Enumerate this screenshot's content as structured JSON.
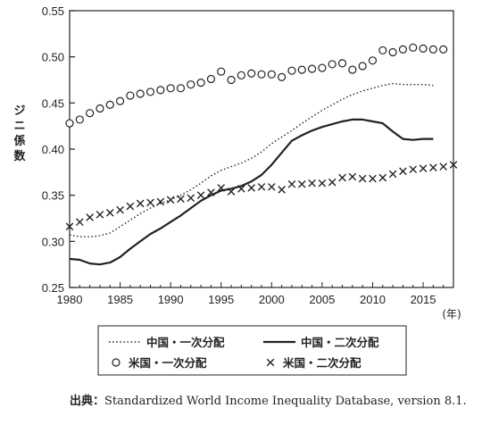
{
  "chart_data": {
    "type": "line",
    "xlabel_unit": "(年)",
    "ylabel": "ジニ係数",
    "xlim": [
      1980,
      2018
    ],
    "ylim": [
      0.25,
      0.55
    ],
    "xticks": [
      "1980",
      "1985",
      "1990",
      "1995",
      "2000",
      "2005",
      "2010",
      "2015"
    ],
    "yticks": [
      "0.25",
      "0.30",
      "0.35",
      "0.40",
      "0.45",
      "0.50",
      "0.55"
    ],
    "grid": false,
    "legend_position": "bottom",
    "series": [
      {
        "name": "中国・一次分配",
        "style": "dotted-line",
        "x": [
          1980,
          1981,
          1982,
          1983,
          1984,
          1985,
          1986,
          1987,
          1988,
          1989,
          1990,
          1991,
          1992,
          1993,
          1994,
          1995,
          1996,
          1997,
          1998,
          1999,
          2000,
          2001,
          2002,
          2003,
          2004,
          2005,
          2006,
          2007,
          2008,
          2009,
          2010,
          2011,
          2012,
          2013,
          2014,
          2015,
          2016
        ],
        "y": [
          0.307,
          0.305,
          0.305,
          0.306,
          0.309,
          0.316,
          0.323,
          0.33,
          0.336,
          0.341,
          0.345,
          0.35,
          0.356,
          0.363,
          0.371,
          0.377,
          0.381,
          0.385,
          0.39,
          0.397,
          0.406,
          0.413,
          0.42,
          0.428,
          0.435,
          0.442,
          0.448,
          0.454,
          0.459,
          0.463,
          0.466,
          0.469,
          0.471,
          0.47,
          0.47,
          0.47,
          0.469
        ]
      },
      {
        "name": "中国・二次分配",
        "style": "solid-line",
        "x": [
          1980,
          1981,
          1982,
          1983,
          1984,
          1985,
          1986,
          1987,
          1988,
          1989,
          1990,
          1991,
          1992,
          1993,
          1994,
          1995,
          1996,
          1997,
          1998,
          1999,
          2000,
          2001,
          2002,
          2003,
          2004,
          2005,
          2006,
          2007,
          2008,
          2009,
          2010,
          2011,
          2012,
          2013,
          2014,
          2015,
          2016
        ],
        "y": [
          0.281,
          0.28,
          0.276,
          0.275,
          0.277,
          0.283,
          0.292,
          0.3,
          0.308,
          0.314,
          0.321,
          0.328,
          0.336,
          0.344,
          0.35,
          0.355,
          0.357,
          0.36,
          0.365,
          0.372,
          0.383,
          0.396,
          0.409,
          0.415,
          0.42,
          0.424,
          0.427,
          0.43,
          0.432,
          0.432,
          0.43,
          0.428,
          0.419,
          0.411,
          0.41,
          0.411,
          0.411
        ]
      },
      {
        "name": "米国・一次分配",
        "style": "circle-markers",
        "x": [
          1980,
          1981,
          1982,
          1983,
          1984,
          1985,
          1986,
          1987,
          1988,
          1989,
          1990,
          1991,
          1992,
          1993,
          1994,
          1995,
          1996,
          1997,
          1998,
          1999,
          2000,
          2001,
          2002,
          2003,
          2004,
          2005,
          2006,
          2007,
          2008,
          2009,
          2010,
          2011,
          2012,
          2013,
          2014,
          2015,
          2016,
          2017
        ],
        "y": [
          0.428,
          0.432,
          0.439,
          0.444,
          0.448,
          0.452,
          0.458,
          0.46,
          0.462,
          0.464,
          0.466,
          0.466,
          0.47,
          0.472,
          0.476,
          0.484,
          0.475,
          0.48,
          0.482,
          0.481,
          0.481,
          0.478,
          0.485,
          0.486,
          0.487,
          0.488,
          0.492,
          0.493,
          0.486,
          0.49,
          0.496,
          0.507,
          0.505,
          0.508,
          0.51,
          0.509,
          0.508,
          0.508
        ]
      },
      {
        "name": "米国・二次分配",
        "style": "x-markers",
        "x": [
          1980,
          1981,
          1982,
          1983,
          1984,
          1985,
          1986,
          1987,
          1988,
          1989,
          1990,
          1991,
          1992,
          1993,
          1994,
          1995,
          1996,
          1997,
          1998,
          1999,
          2000,
          2001,
          2002,
          2003,
          2004,
          2005,
          2006,
          2007,
          2008,
          2009,
          2010,
          2011,
          2012,
          2013,
          2014,
          2015,
          2016,
          2017,
          2018
        ],
        "y": [
          0.316,
          0.321,
          0.326,
          0.329,
          0.331,
          0.334,
          0.338,
          0.341,
          0.342,
          0.343,
          0.345,
          0.346,
          0.347,
          0.35,
          0.353,
          0.358,
          0.354,
          0.357,
          0.358,
          0.359,
          0.359,
          0.356,
          0.362,
          0.362,
          0.363,
          0.363,
          0.364,
          0.369,
          0.37,
          0.368,
          0.368,
          0.369,
          0.373,
          0.376,
          0.378,
          0.379,
          0.38,
          0.381,
          0.383
        ]
      }
    ]
  },
  "source": {
    "label": "出典：",
    "text": "Standardized World Income Inequality Database, version 8.1."
  },
  "colors": {
    "ink": "#222222"
  }
}
